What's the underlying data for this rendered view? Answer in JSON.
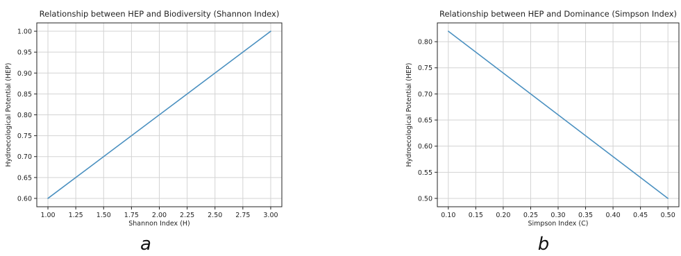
{
  "figure": {
    "panel_letters": [
      "a",
      "b"
    ]
  },
  "style": {
    "line_color": "#4a90c0",
    "grid_color": "#d3d3d3",
    "frame_color": "#222222"
  },
  "chart_data": [
    {
      "type": "line",
      "title": "Relationship between HEP and Biodiversity (Shannon Index)",
      "xlabel": "Shannon Index (H)",
      "ylabel": "Hydroecological Potential (HEP)",
      "xlim": [
        0.9,
        3.1
      ],
      "ylim": [
        0.58,
        1.02
      ],
      "xticks": [
        1.0,
        1.25,
        1.5,
        1.75,
        2.0,
        2.25,
        2.5,
        2.75,
        3.0
      ],
      "xtick_labels": [
        "1.00",
        "1.25",
        "1.50",
        "1.75",
        "2.00",
        "2.25",
        "2.50",
        "2.75",
        "3.00"
      ],
      "yticks": [
        0.6,
        0.65,
        0.7,
        0.75,
        0.8,
        0.85,
        0.9,
        0.95,
        1.0
      ],
      "ytick_labels": [
        "0.60",
        "0.65",
        "0.70",
        "0.75",
        "0.80",
        "0.85",
        "0.90",
        "0.95",
        "1.00"
      ],
      "grid": true,
      "series": [
        {
          "x": [
            1.0,
            1.5,
            2.0,
            2.5,
            3.0
          ],
          "y": [
            0.6,
            0.7,
            0.8,
            0.9,
            1.0
          ]
        }
      ]
    },
    {
      "type": "line",
      "title": "Relationship between HEP and Dominance (Simpson Index)",
      "xlabel": "Simpson Index (C)",
      "ylabel": "Hydroecological Potential (HEP)",
      "xlim": [
        0.08,
        0.52
      ],
      "ylim": [
        0.484,
        0.836
      ],
      "xticks": [
        0.1,
        0.15,
        0.2,
        0.25,
        0.3,
        0.35,
        0.4,
        0.45,
        0.5
      ],
      "xtick_labels": [
        "0.10",
        "0.15",
        "0.20",
        "0.25",
        "0.30",
        "0.35",
        "0.40",
        "0.45",
        "0.50"
      ],
      "yticks": [
        0.5,
        0.55,
        0.6,
        0.65,
        0.7,
        0.75,
        0.8
      ],
      "ytick_labels": [
        "0.50",
        "0.55",
        "0.60",
        "0.65",
        "0.70",
        "0.75",
        "0.80"
      ],
      "grid": true,
      "series": [
        {
          "x": [
            0.1,
            0.2,
            0.3,
            0.4,
            0.5
          ],
          "y": [
            0.82,
            0.74,
            0.66,
            0.58,
            0.5
          ]
        }
      ]
    }
  ]
}
